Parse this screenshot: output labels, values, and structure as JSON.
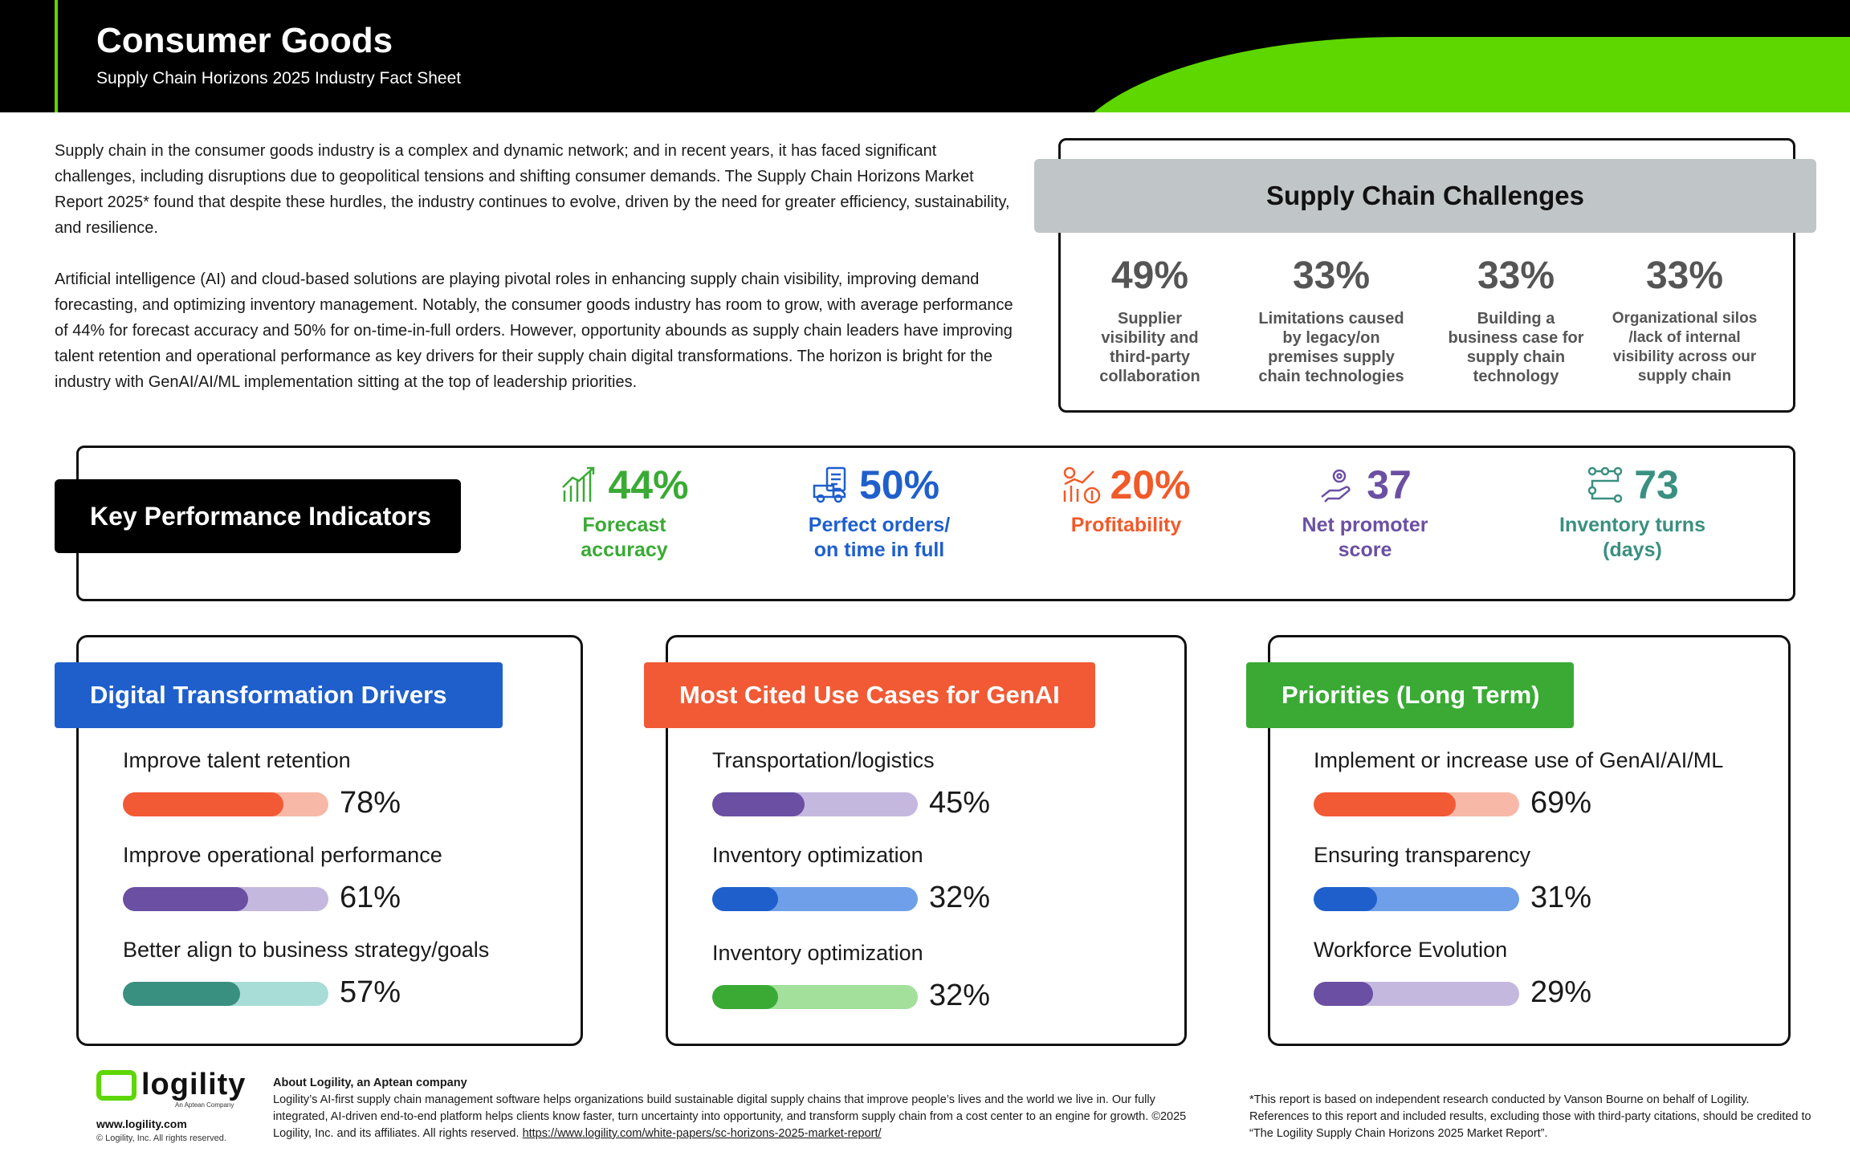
{
  "header": {
    "title": "Consumer Goods",
    "subtitle": "Supply Chain Horizons 2025 Industry Fact Sheet",
    "accent_color": "#5ed600"
  },
  "intro": {
    "p1": "Supply chain in the consumer goods industry is a complex and dynamic network; and in recent years, it has faced significant challenges, including disruptions due to geopolitical tensions and shifting consumer demands. The Supply Chain Horizons Market Report 2025* found that despite these hurdles, the industry continues to evolve, driven by the need for greater efficiency, sustainability, and resilience.",
    "p2": "Artificial intelligence (AI) and cloud-based solutions are playing pivotal roles in enhancing supply chain visibility, improving demand forecasting, and optimizing inventory management. Notably, the consumer goods industry has room to grow, with average performance of 44% for forecast accuracy and 50% for on-time-in-full orders. However, opportunity abounds as supply chain leaders have improving talent retention and operational performance as key drivers for their supply chain digital transformations. The horizon is bright for the industry with GenAI/AI/ML implementation sitting at the top of leadership priorities."
  },
  "challenges": {
    "title": "Supply Chain Challenges",
    "items": [
      {
        "pct": "49%",
        "label": "Supplier visibility and third-party collaboration"
      },
      {
        "pct": "33%",
        "label": "Limitations caused by legacy/on premises supply chain technologies"
      },
      {
        "pct": "33%",
        "label": "Building a business case for supply chain technology"
      },
      {
        "pct": "33%",
        "label": "Organizational silos /lack of internal visibility across our supply chain"
      }
    ]
  },
  "kpi": {
    "title": "Key Performance Indicators",
    "items": [
      {
        "value": "44%",
        "label": "Forecast accuracy",
        "color": "#3aaa35",
        "icon": "bar-chart-growth-icon"
      },
      {
        "value": "50%",
        "label": "Perfect orders/ on time in full",
        "color": "#1f5fcc",
        "icon": "delivery-truck-checklist-icon"
      },
      {
        "value": "20%",
        "label": "Profitability",
        "color": "#f15a29",
        "icon": "profit-growth-icon"
      },
      {
        "value": "37",
        "label": "Net promoter score",
        "color": "#6b4fa3",
        "icon": "hand-gear-icon"
      },
      {
        "value": "73",
        "label": "Inventory turns (days)",
        "color": "#3a9080",
        "icon": "workflow-nodes-icon"
      }
    ]
  },
  "panels": {
    "drivers": {
      "title": "Digital Transformation Drivers",
      "color": "#1f5fcc",
      "items": [
        {
          "label": "Improve talent retention",
          "pct_text": "78%",
          "value": 78,
          "fill": "#f15a35",
          "track": "#f8b8a8"
        },
        {
          "label": "Improve operational performance",
          "pct_text": "61%",
          "value": 61,
          "fill": "#6a4fa3",
          "track": "#c5b8de"
        },
        {
          "label": "Better align to business strategy/goals",
          "pct_text": "57%",
          "value": 57,
          "fill": "#3a9080",
          "track": "#a8dcd6"
        }
      ]
    },
    "genai": {
      "title": "Most Cited Use Cases for GenAI",
      "color": "#f15a35",
      "items": [
        {
          "label": "Transportation/logistics",
          "pct_text": "45%",
          "value": 45,
          "fill": "#6a4fa3",
          "track": "#c5b8de"
        },
        {
          "label": "Inventory optimization",
          "pct_text": "32%",
          "value": 32,
          "fill": "#1f5fcc",
          "track": "#6e9fe8"
        },
        {
          "label": "Inventory optimization",
          "pct_text": "32%",
          "value": 32,
          "fill": "#3aaa35",
          "track": "#a2e09b"
        }
      ]
    },
    "priorities": {
      "title": "Priorities (Long Term)",
      "color": "#3aaa35",
      "items": [
        {
          "label": "Implement or increase use of GenAI/AI/ML",
          "pct_text": "69%",
          "value": 69,
          "fill": "#f15a35",
          "track": "#f8b8a8"
        },
        {
          "label": "Ensuring transparency",
          "pct_text": "31%",
          "value": 31,
          "fill": "#1f5fcc",
          "track": "#6e9fe8"
        },
        {
          "label": "Workforce Evolution",
          "pct_text": "29%",
          "value": 29,
          "fill": "#6a4fa3",
          "track": "#c5b8de"
        }
      ]
    }
  },
  "footer": {
    "logo_text": "logility",
    "logo_sub": "An Aptean Company",
    "website": "www.logility.com",
    "copyright": "© Logility, Inc. All rights reserved.",
    "about_head": "About Logility, an Aptean company",
    "about_body": "Logility’s AI-first supply chain management software helps organizations build sustainable digital supply chains that improve people’s lives and the world we live in. Our fully integrated, AI-driven end-to-end platform helps clients know faster, turn uncertainty into opportunity, and transform supply chain from a cost center to an engine for growth. ©2025 Logility, Inc. and its affiliates. All rights reserved. ",
    "about_link": "https://www.logility.com/white-papers/sc-horizons-2025-market-report/",
    "note": "*This report is based on independent research conducted by Vanson Bourne on behalf of Logility. References to this report and included results, excluding those with third-party citations, should be credited to “The Logility Supply Chain Horizons 2025 Market Report”."
  }
}
